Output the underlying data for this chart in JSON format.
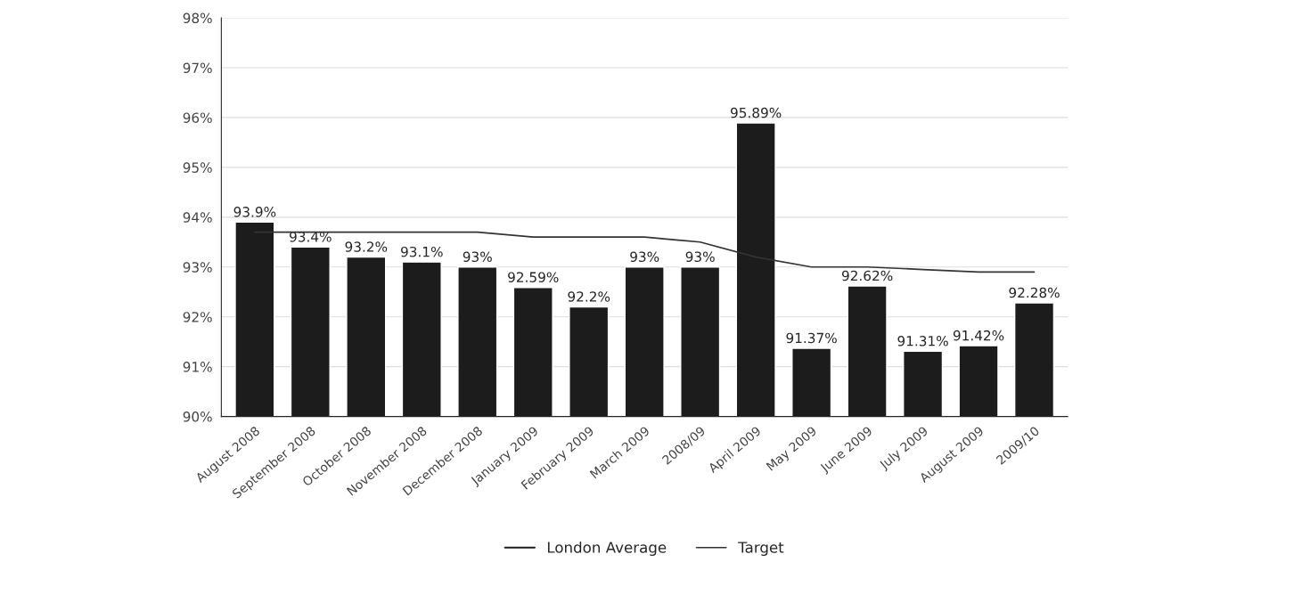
{
  "chart_data": {
    "type": "bar",
    "categories": [
      "August 2008",
      "September 2008",
      "October 2008",
      "November 2008",
      "December 2008",
      "January 2009",
      "February 2009",
      "March 2009",
      "2008/09",
      "April 2009",
      "May 2009",
      "June 2009",
      "July 2009",
      "August 2009",
      "2009/10"
    ],
    "series": [
      {
        "name": "London Average",
        "color": "#1c1c1c",
        "values": [
          93.9,
          93.4,
          93.2,
          93.1,
          93,
          92.59,
          92.2,
          93,
          93,
          95.89,
          91.37,
          92.62,
          91.31,
          91.42,
          92.28
        ],
        "value_labels": [
          "93.9%",
          "93.4%",
          "93.2%",
          "93.1%",
          "93%",
          "92.59%",
          "92.2%",
          "93%",
          "93%",
          "95.89%",
          "91.37%",
          "92.62%",
          "91.31%",
          "91.42%",
          "92.28%"
        ]
      },
      {
        "name": "Target",
        "type": "line",
        "color": "#333333",
        "values": [
          93.7,
          93.7,
          93.7,
          93.7,
          93.7,
          93.6,
          93.6,
          93.6,
          93.5,
          93.2,
          93.0,
          93.0,
          92.95,
          92.9,
          92.9
        ]
      }
    ],
    "ylim": [
      90,
      98
    ],
    "yticks": [
      {
        "value": 90,
        "label": "90%"
      },
      {
        "value": 91,
        "label": "91%"
      },
      {
        "value": 92,
        "label": "92%"
      },
      {
        "value": 93,
        "label": "93%"
      },
      {
        "value": 94,
        "label": "94%"
      },
      {
        "value": 95,
        "label": "95%"
      },
      {
        "value": 96,
        "label": "96%"
      },
      {
        "value": 97,
        "label": "97%"
      },
      {
        "value": 98,
        "label": "98%"
      }
    ],
    "grid": "y",
    "legend": "bottom",
    "marker": "none",
    "line_style": "solid"
  }
}
